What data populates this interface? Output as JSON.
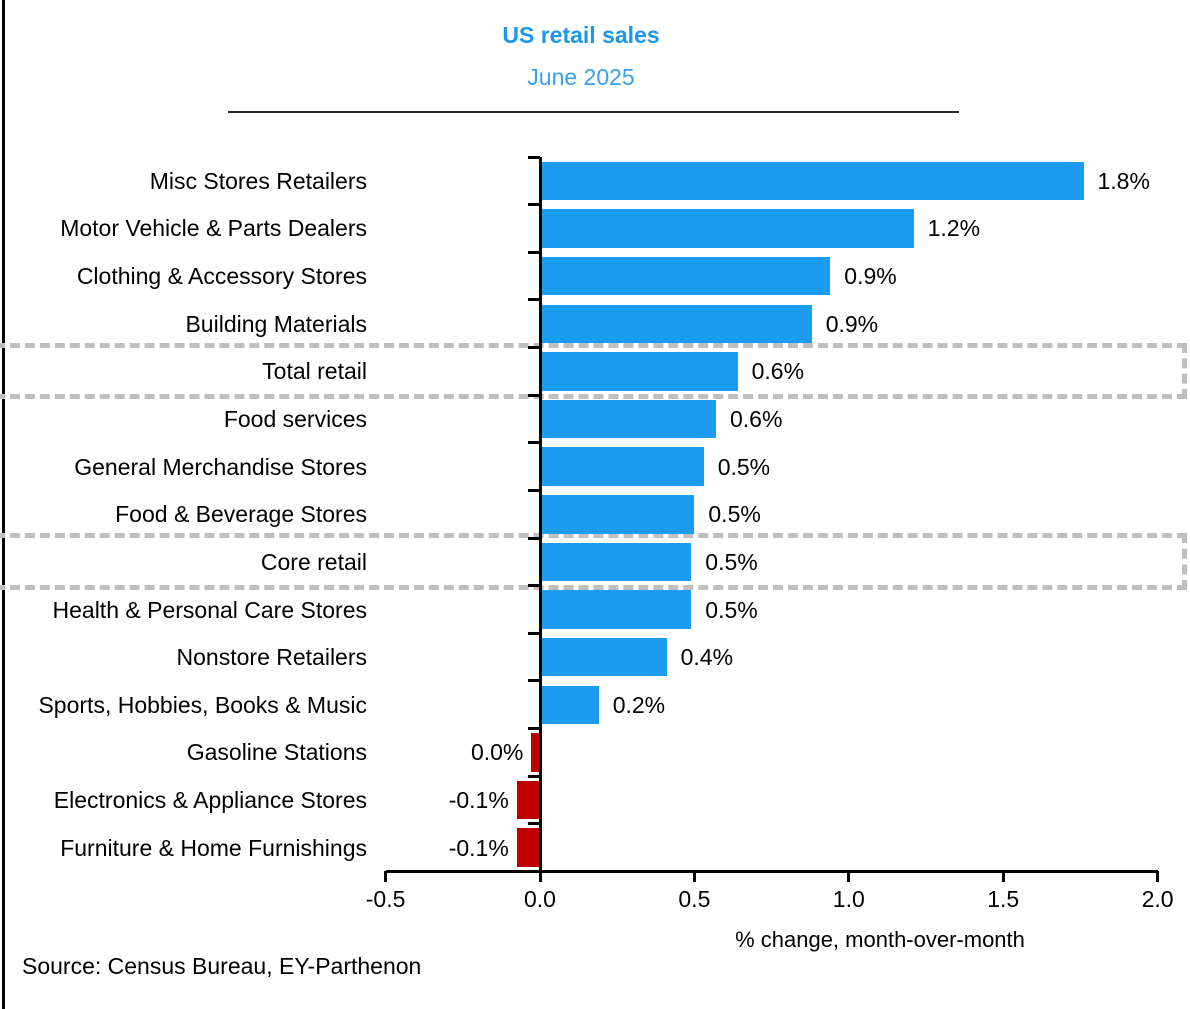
{
  "header": {
    "title": "US retail sales",
    "subtitle": "June 2025"
  },
  "footer": {
    "source": "Source: Census Bureau, EY-Parthenon"
  },
  "chart_data": {
    "type": "bar",
    "orientation": "horizontal",
    "title": "US retail sales",
    "subtitle": "June 2025",
    "xlabel": "% change, month-over-month",
    "xlim": [
      -0.5,
      2.0
    ],
    "grid": false,
    "legend": "none",
    "x_ticks": [
      {
        "value": -0.5,
        "label": "-0.5"
      },
      {
        "value": 0.0,
        "label": "0.0"
      },
      {
        "value": 0.5,
        "label": "0.5"
      },
      {
        "value": 1.0,
        "label": "1.0"
      },
      {
        "value": 1.5,
        "label": "1.5"
      },
      {
        "value": 2.0,
        "label": "2.0"
      }
    ],
    "categories": [
      "Misc Stores Retailers",
      "Motor Vehicle & Parts Dealers",
      "Clothing & Accessory Stores",
      "Building Materials",
      "Total retail",
      "Food services",
      "General Merchandise Stores",
      "Food & Beverage Stores",
      "Core retail",
      "Health & Personal Care Stores",
      "Nonstore Retailers",
      "Sports, Hobbies, Books & Music",
      "Gasoline Stations",
      "Electronics & Appliance Stores",
      "Furniture & Home Furnishings"
    ],
    "values": [
      1.8,
      1.2,
      0.9,
      0.9,
      0.6,
      0.6,
      0.5,
      0.5,
      0.5,
      0.5,
      0.4,
      0.2,
      0.0,
      -0.1,
      -0.1
    ],
    "highlighted_categories": [
      "Total retail",
      "Core retail"
    ],
    "rows": [
      {
        "label": "Misc Stores Retailers",
        "value_label": "1.8%",
        "bar_value": 1.76,
        "highlight": false
      },
      {
        "label": "Motor Vehicle & Parts Dealers",
        "value_label": "1.2%",
        "bar_value": 1.21,
        "highlight": false
      },
      {
        "label": "Clothing & Accessory Stores",
        "value_label": "0.9%",
        "bar_value": 0.94,
        "highlight": false
      },
      {
        "label": "Building Materials",
        "value_label": "0.9%",
        "bar_value": 0.88,
        "highlight": false
      },
      {
        "label": "Total retail",
        "value_label": "0.6%",
        "bar_value": 0.64,
        "highlight": true
      },
      {
        "label": "Food services",
        "value_label": "0.6%",
        "bar_value": 0.57,
        "highlight": false
      },
      {
        "label": "General Merchandise Stores",
        "value_label": "0.5%",
        "bar_value": 0.53,
        "highlight": false
      },
      {
        "label": "Food & Beverage Stores",
        "value_label": "0.5%",
        "bar_value": 0.5,
        "highlight": false
      },
      {
        "label": "Core retail",
        "value_label": "0.5%",
        "bar_value": 0.49,
        "highlight": true
      },
      {
        "label": "Health & Personal Care Stores",
        "value_label": "0.5%",
        "bar_value": 0.49,
        "highlight": false
      },
      {
        "label": "Nonstore Retailers",
        "value_label": "0.4%",
        "bar_value": 0.41,
        "highlight": false
      },
      {
        "label": "Sports, Hobbies, Books & Music",
        "value_label": "0.2%",
        "bar_value": 0.19,
        "highlight": false
      },
      {
        "label": "Gasoline Stations",
        "value_label": "0.0%",
        "bar_value": -0.028,
        "highlight": false
      },
      {
        "label": "Electronics & Appliance Stores",
        "value_label": "-0.1%",
        "bar_value": -0.075,
        "highlight": false
      },
      {
        "label": "Furniture & Home Furnishings",
        "value_label": "-0.1%",
        "bar_value": -0.075,
        "highlight": false
      }
    ],
    "colors": {
      "positive": "#1b9cee",
      "negative": "#c00000",
      "highlight_border": "#bfbfbf",
      "title": "#1b97ec",
      "subtitle": "#39a1ee",
      "axis": "#000000"
    },
    "source": "Source: Census Bureau, EY-Parthenon"
  }
}
